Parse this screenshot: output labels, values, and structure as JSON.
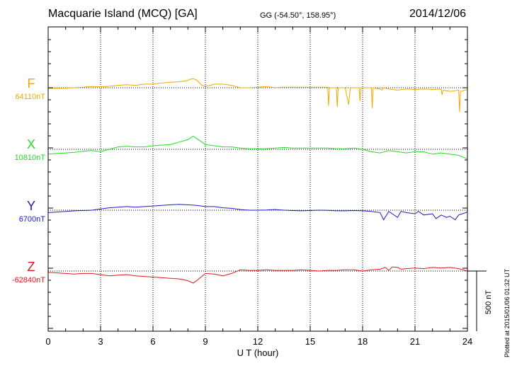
{
  "header": {
    "title": "Macquarie Island (MCQ)  [GA]",
    "coords": "GG (-54.50°, 158.95°)",
    "date": "2014/12/06"
  },
  "footer": {
    "plotted": "Plotted at 2015/01/06 01:32 UT"
  },
  "chart_data": {
    "type": "line",
    "xlabel": "U T (hour)",
    "xlim": [
      0,
      24
    ],
    "xticks": [
      0,
      3,
      6,
      9,
      12,
      15,
      18,
      21,
      24
    ],
    "scale_bar_label": "500 nT",
    "scale_bar_nT": 500,
    "grid": true,
    "series": [
      {
        "name": "F",
        "baseline_label": "64110nT",
        "baseline": 64110,
        "color": "#f0a800",
        "x": [
          0,
          0.5,
          1,
          1.5,
          2,
          2.5,
          3,
          3.5,
          4,
          4.5,
          5,
          5.5,
          6,
          6.5,
          7,
          7.5,
          8,
          8.1,
          8.3,
          8.5,
          8.8,
          9,
          9.3,
          9.5,
          10,
          10.5,
          11,
          11.5,
          12,
          12.5,
          13,
          13.5,
          14,
          14.5,
          15,
          15.5,
          16,
          16.05,
          16.1,
          16.5,
          16.55,
          16.6,
          17,
          17.2,
          17.3,
          17.8,
          17.85,
          17.9,
          18.5,
          18.55,
          18.6,
          19,
          19.1,
          19.2,
          19.5,
          20,
          20.5,
          21,
          21.5,
          22,
          22.5,
          22.55,
          22.6,
          23,
          23.5,
          23.55,
          23.6,
          24
        ],
        "y": [
          -5,
          -5,
          -3,
          0,
          5,
          10,
          8,
          12,
          20,
          25,
          20,
          30,
          30,
          40,
          45,
          50,
          60,
          70,
          75,
          65,
          20,
          15,
          20,
          30,
          30,
          20,
          0,
          0,
          5,
          10,
          0,
          5,
          5,
          5,
          5,
          5,
          5,
          -150,
          0,
          0,
          -160,
          0,
          0,
          -140,
          0,
          0,
          -110,
          0,
          0,
          -170,
          0,
          -10,
          -20,
          0,
          -10,
          -20,
          -10,
          -15,
          -10,
          -15,
          -10,
          -60,
          -20,
          -30,
          -20,
          -200,
          -30,
          -15
        ]
      },
      {
        "name": "X",
        "baseline_label": "10810nT",
        "baseline": 10810,
        "color": "#22dd22",
        "x": [
          0,
          0.5,
          1,
          1.5,
          2,
          2.5,
          3,
          3.5,
          4,
          4.5,
          5,
          5.5,
          6,
          6.5,
          7,
          7.5,
          8,
          8.3,
          8.5,
          9,
          9.5,
          10,
          10.5,
          11,
          11.5,
          12,
          12.5,
          13,
          13.5,
          14,
          14.5,
          15,
          15.5,
          16,
          16.5,
          17,
          17.5,
          18,
          18.5,
          19,
          19.5,
          20,
          20.5,
          21,
          21.5,
          22,
          22.5,
          23,
          23.5,
          24
        ],
        "y": [
          -40,
          -35,
          -30,
          -25,
          -15,
          -10,
          -20,
          0,
          20,
          25,
          20,
          20,
          30,
          35,
          40,
          60,
          80,
          110,
          90,
          40,
          30,
          20,
          20,
          10,
          5,
          5,
          5,
          10,
          15,
          10,
          10,
          10,
          10,
          10,
          5,
          5,
          10,
          0,
          -20,
          -30,
          -10,
          -20,
          -30,
          -20,
          -20,
          -40,
          -30,
          -40,
          -50,
          -80
        ]
      },
      {
        "name": "Y",
        "baseline_label": "6700nT",
        "baseline": 6700,
        "color": "#1a1acc",
        "x": [
          0,
          0.5,
          1,
          1.5,
          2,
          2.5,
          3,
          3.5,
          4,
          4.5,
          5,
          5.5,
          6,
          6.5,
          7,
          7.5,
          8,
          8.5,
          9,
          9.5,
          10,
          10.5,
          11,
          11.5,
          12,
          12.5,
          13,
          13.5,
          14,
          14.5,
          15,
          15.5,
          16,
          16.5,
          17,
          17.5,
          18,
          18.5,
          19,
          19.2,
          19.5,
          19.7,
          20,
          20.2,
          20.5,
          21,
          21.2,
          21.5,
          22,
          22.2,
          22.5,
          22.8,
          23,
          23.3,
          23.5,
          24
        ],
        "y": [
          -20,
          -15,
          -10,
          -5,
          -3,
          0,
          10,
          20,
          25,
          30,
          25,
          30,
          35,
          40,
          45,
          48,
          45,
          40,
          30,
          30,
          20,
          15,
          5,
          0,
          0,
          2,
          5,
          0,
          -3,
          -5,
          -3,
          0,
          -2,
          -5,
          -5,
          -3,
          -5,
          -10,
          -20,
          -80,
          -10,
          -30,
          -60,
          -10,
          -20,
          -30,
          -10,
          -40,
          -30,
          -70,
          -40,
          -60,
          -50,
          -80,
          -40,
          -15
        ]
      },
      {
        "name": "Z",
        "baseline_label": "-62840nT",
        "baseline": -62840,
        "color": "#e01818",
        "x": [
          0,
          0.5,
          1,
          1.5,
          2,
          2.5,
          3,
          3.5,
          4,
          4.5,
          5,
          5.5,
          6,
          6.5,
          7,
          7.5,
          8,
          8.3,
          8.5,
          9,
          9.5,
          10,
          10.5,
          11,
          11.5,
          12,
          12.5,
          13,
          13.5,
          14,
          14.5,
          15,
          15.5,
          16,
          16.5,
          17,
          17.5,
          18,
          18.5,
          19,
          19.3,
          19.5,
          19.7,
          20,
          20.2,
          20.5,
          21,
          21.5,
          22,
          22.5,
          23,
          23.5,
          24
        ],
        "y": [
          -10,
          -15,
          -20,
          -25,
          -20,
          -20,
          -30,
          -40,
          -35,
          -30,
          -40,
          -45,
          -50,
          -55,
          -60,
          -65,
          -80,
          -100,
          -80,
          -20,
          -25,
          -40,
          -20,
          10,
          5,
          5,
          10,
          5,
          5,
          5,
          10,
          5,
          0,
          5,
          5,
          10,
          10,
          0,
          10,
          15,
          30,
          5,
          35,
          30,
          15,
          20,
          25,
          20,
          30,
          25,
          30,
          20,
          0
        ]
      }
    ]
  }
}
